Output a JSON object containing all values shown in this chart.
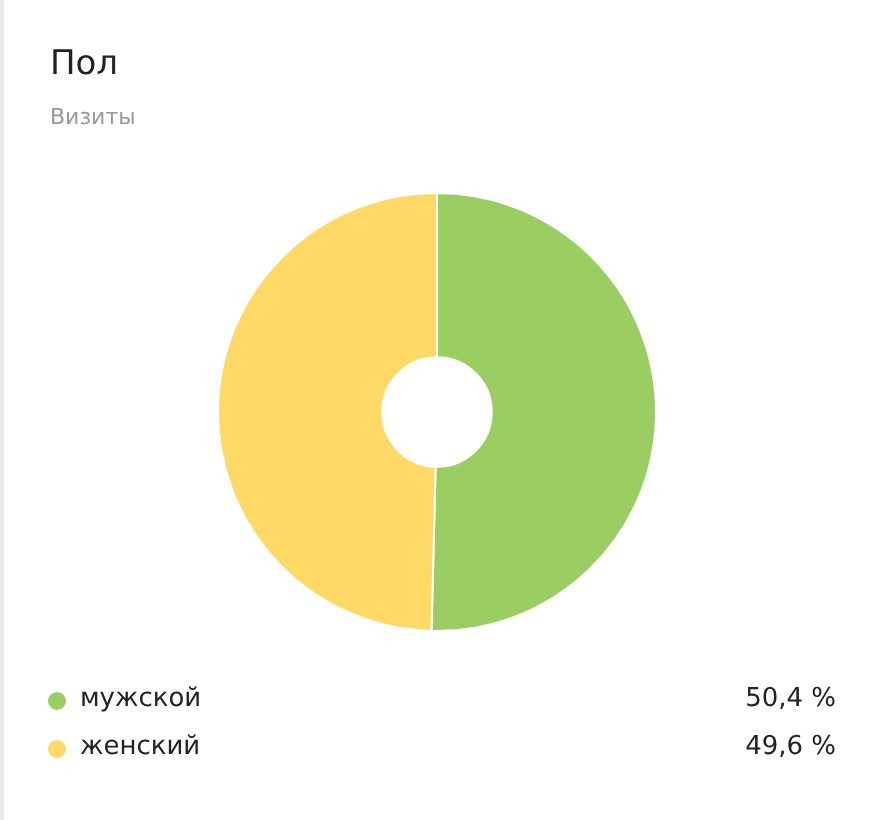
{
  "chart_data": {
    "type": "donut",
    "title": "Пол",
    "subtitle": "Визиты",
    "categories": [
      "мужской",
      "женский"
    ],
    "values": [
      50.4,
      49.6
    ],
    "colors": [
      "#9acd62",
      "#ffd966"
    ],
    "value_labels": [
      "50,4 %",
      "49,6 %"
    ],
    "legend": "bottom"
  }
}
